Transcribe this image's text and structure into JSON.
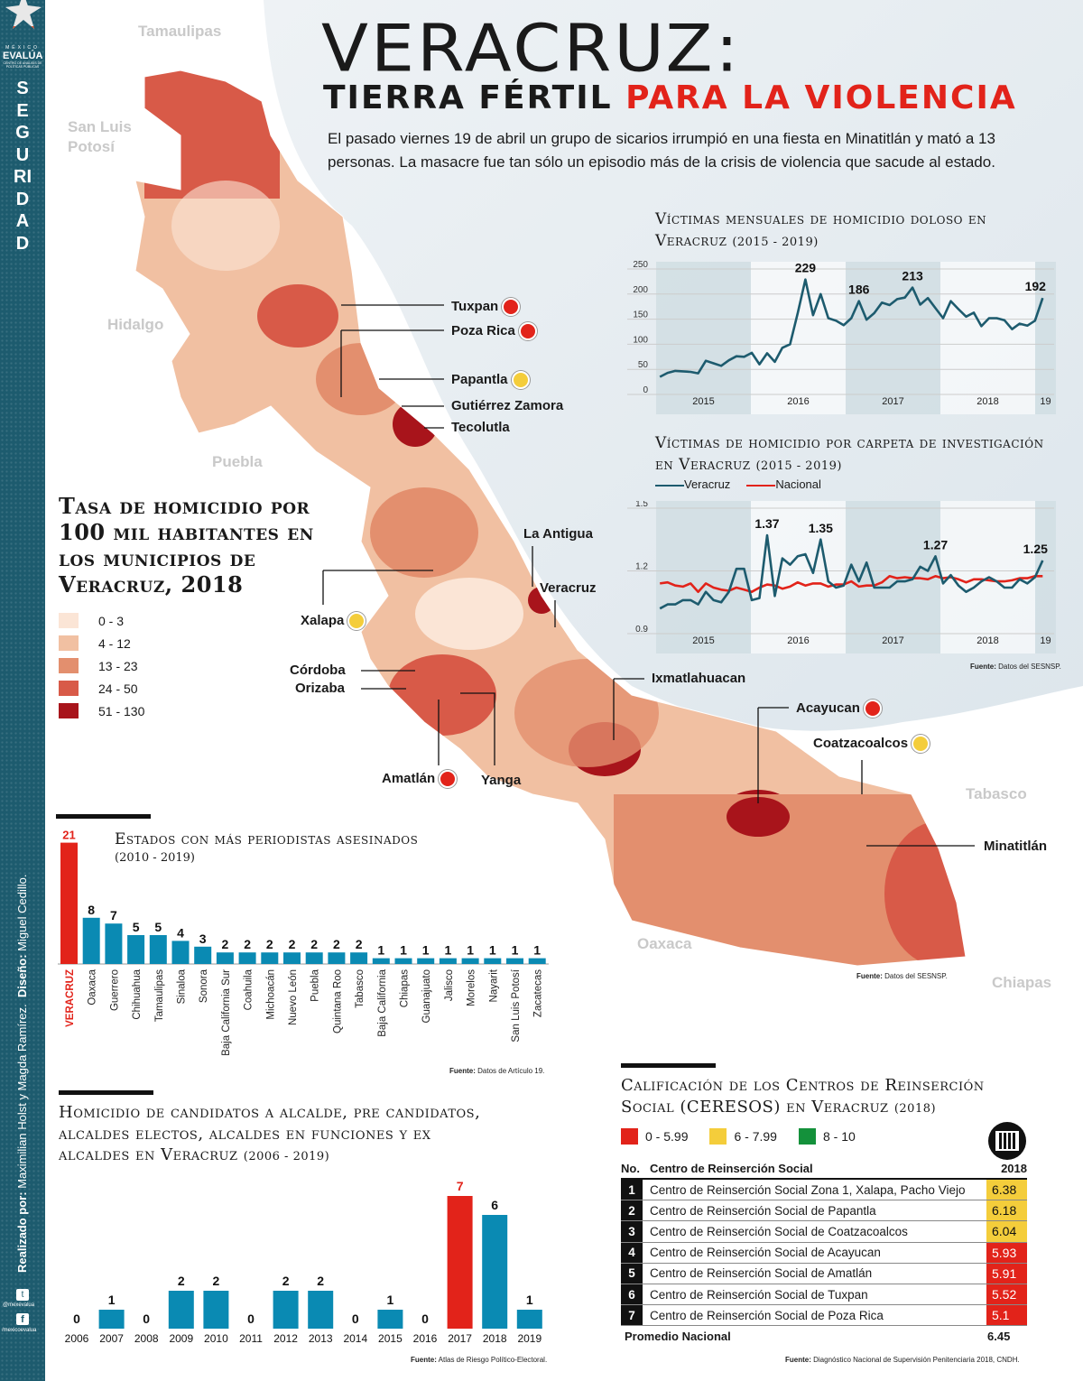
{
  "sidebar": {
    "brand_top": "MÉXICO",
    "brand": "EVALÚA",
    "brand_sub": "CENTRO DE ANÁLISIS DE POLÍTICAS PÚBLICAS",
    "section": "SEGURIDAD",
    "credits_label1": "Realizado por:",
    "credits1": "Maximilian Holst y Magda Ramírez.",
    "credits_label2": "Diseño:",
    "credits2": "Miguel Cedillo.",
    "twitter": "@mexevalua",
    "facebook": "/mexicoevalua",
    "colors": {
      "bg": "#1d5b6e"
    }
  },
  "header": {
    "title": "VERACRUZ:",
    "subtitle_a": "TIERRA FÉRTIL",
    "subtitle_b": "PARA LA VIOLENCIA",
    "intro": "El pasado viernes 19 de abril un grupo de sicarios irrumpió en una fiesta en Minatitlán y mató a 13 personas. La masacre fue tan sólo un episodio más de la crisis de violencia que sacude al estado."
  },
  "map": {
    "title": "Tasa de homicidio por 100 mil habitantes en los municipios de Veracruz, 2018",
    "legend": [
      {
        "label": "0 - 3",
        "color": "#fbe5d6"
      },
      {
        "label": "4 - 12",
        "color": "#f1c0a2"
      },
      {
        "label": "13 - 23",
        "color": "#e38f6e"
      },
      {
        "label": "24 - 50",
        "color": "#d85a48"
      },
      {
        "label": "51 - 130",
        "color": "#a8141b"
      }
    ],
    "states": [
      "Tamaulipas",
      "San Luis Potosí",
      "Hidalgo",
      "Puebla",
      "Tabasco",
      "Oaxaca",
      "Chiapas"
    ],
    "places": [
      "Tuxpan",
      "Poza Rica",
      "Papantla",
      "Gutiérrez Zamora",
      "Tecolutla",
      "La Antigua",
      "Veracruz",
      "Xalapa",
      "Córdoba",
      "Orizaba",
      "Amatlán",
      "Yanga",
      "Ixmatlahuacan",
      "Acayucan",
      "Coatzacoalcos",
      "Minatitlán"
    ],
    "source_label": "Fuente:",
    "source": "Datos del SESNSP."
  },
  "chart_data": [
    {
      "type": "line",
      "title": "Víctimas mensuales de homicidio doloso en Veracruz",
      "period": "(2015 - 2019)",
      "ylim": [
        0,
        250
      ],
      "yticks": [
        "0",
        "50",
        "100",
        "150",
        "200",
        "250"
      ],
      "xticks": [
        "2015",
        "2016",
        "2017",
        "2018",
        "19"
      ],
      "series": [
        {
          "name": "Veracruz",
          "color": "#1d5b6e",
          "values": [
            35,
            43,
            47,
            46,
            45,
            42,
            67,
            62,
            57,
            68,
            76,
            75,
            83,
            60,
            82,
            65,
            93,
            100,
            162,
            229,
            158,
            200,
            152,
            147,
            138,
            152,
            186,
            149,
            162,
            183,
            178,
            190,
            193,
            213,
            179,
            192,
            172,
            152,
            186,
            170,
            155,
            163,
            136,
            152,
            152,
            148,
            130,
            141,
            137,
            147,
            192
          ]
        }
      ],
      "annotations": [
        {
          "index": 19,
          "label": "229"
        },
        {
          "index": 26,
          "label": "186"
        },
        {
          "index": 33,
          "label": "213"
        },
        {
          "index": 50,
          "label": "192"
        }
      ]
    },
    {
      "type": "line",
      "title": "Víctimas de homicidio por carpeta de investigación en Veracruz",
      "period": "(2015 - 2019)",
      "ylim": [
        0.9,
        1.5
      ],
      "yticks": [
        "0.9",
        "1.2",
        "1.5"
      ],
      "xticks": [
        "2015",
        "2016",
        "2017",
        "2018",
        "19"
      ],
      "series": [
        {
          "name": "Veracruz",
          "color": "#1d5b6e",
          "values": [
            1.02,
            1.04,
            1.04,
            1.06,
            1.06,
            1.04,
            1.1,
            1.06,
            1.05,
            1.1,
            1.21,
            1.21,
            1.06,
            1.07,
            1.37,
            1.08,
            1.26,
            1.23,
            1.27,
            1.28,
            1.19,
            1.35,
            1.15,
            1.12,
            1.13,
            1.23,
            1.15,
            1.24,
            1.12,
            1.12,
            1.12,
            1.15,
            1.15,
            1.16,
            1.22,
            1.2,
            1.27,
            1.14,
            1.18,
            1.13,
            1.1,
            1.12,
            1.15,
            1.17,
            1.15,
            1.12,
            1.12,
            1.16,
            1.14,
            1.17,
            1.25
          ]
        },
        {
          "name": "Nacional",
          "color": "#e2231a",
          "values": [
            1.14,
            1.145,
            1.13,
            1.125,
            1.14,
            1.1,
            1.14,
            1.12,
            1.11,
            1.105,
            1.12,
            1.11,
            1.1,
            1.12,
            1.135,
            1.13,
            1.115,
            1.125,
            1.145,
            1.13,
            1.14,
            1.14,
            1.125,
            1.135,
            1.135,
            1.15,
            1.125,
            1.13,
            1.13,
            1.145,
            1.175,
            1.165,
            1.17,
            1.165,
            1.165,
            1.16,
            1.175,
            1.165,
            1.17,
            1.16,
            1.145,
            1.16,
            1.16,
            1.155,
            1.15,
            1.15,
            1.155,
            1.165,
            1.165,
            1.175,
            1.175
          ]
        }
      ],
      "annotations": [
        {
          "index": 14,
          "label": "1.37"
        },
        {
          "index": 21,
          "label": "1.35"
        },
        {
          "index": 36,
          "label": "1.27"
        },
        {
          "index": 50,
          "label": "1.25"
        }
      ],
      "source_label": "Fuente:",
      "source": "Datos del SESNSP."
    },
    {
      "type": "bar",
      "title": "Estados con más periodistas asesinados",
      "period": "(2010 - 2019)",
      "categories": [
        "VERACRUZ",
        "Oaxaca",
        "Guerrero",
        "Chihuahua",
        "Tamaulipas",
        "Sinaloa",
        "Sonora",
        "Baja California Sur",
        "Coahuila",
        "Michoacán",
        "Nuevo León",
        "Puebla",
        "Quintana Roo",
        "Tabasco",
        "Baja California",
        "Chiapas",
        "Guanajuato",
        "Jalisco",
        "Morelos",
        "Nayarit",
        "San Luis Potosí",
        "Zacatecas"
      ],
      "values": [
        21,
        8,
        7,
        5,
        5,
        4,
        3,
        2,
        2,
        2,
        2,
        2,
        2,
        2,
        1,
        1,
        1,
        1,
        1,
        1,
        1,
        1
      ],
      "highlight": 0,
      "source_label": "Fuente:",
      "source": "Datos de Artículo 19."
    },
    {
      "type": "bar",
      "title": "Homicidio de candidatos a alcalde, pre candidatos, alcaldes electos, alcaldes en funciones y ex alcaldes en Veracruz",
      "period": "(2006 - 2019)",
      "categories": [
        "2006",
        "2007",
        "2008",
        "2009",
        "2010",
        "2011",
        "2012",
        "2013",
        "2014",
        "2015",
        "2016",
        "2017",
        "2018",
        "2019"
      ],
      "values": [
        0,
        1,
        0,
        2,
        2,
        0,
        2,
        2,
        0,
        1,
        0,
        7,
        6,
        1
      ],
      "highlight": 11,
      "source_label": "Fuente:",
      "source": "Atlas de Riesgo Político-Electoral."
    },
    {
      "type": "table",
      "title": "Calificación de los Centros de Reinserción Social (CERESOS) en Veracruz",
      "period": "(2018)",
      "legend": [
        {
          "label": "0 - 5.99",
          "color": "#e2231a"
        },
        {
          "label": "6 - 7.99",
          "color": "#f4cd3b"
        },
        {
          "label": "8 - 10",
          "color": "#14913b"
        }
      ],
      "headers": [
        "No.",
        "Centro de Reinserción Social",
        "2018"
      ],
      "rows": [
        [
          "1",
          "Centro de Reinserción Social Zona 1, Xalapa, Pacho Viejo",
          "6.38"
        ],
        [
          "2",
          "Centro de Reinserción Social de Papantla",
          "6.18"
        ],
        [
          "3",
          "Centro de Reinserción Social de Coatzacoalcos",
          "6.04"
        ],
        [
          "4",
          "Centro de Reinserción Social de Acayucan",
          "5.93"
        ],
        [
          "5",
          "Centro de Reinserción Social de Amatlán",
          "5.91"
        ],
        [
          "6",
          "Centro de Reinserción Social de Tuxpan",
          "5.52"
        ],
        [
          "7",
          "Centro de Reinserción Social de Poza Rica",
          "5.1"
        ]
      ],
      "footer": [
        "Promedio Nacional",
        "6.45"
      ],
      "source_label": "Fuente:",
      "source": "Diagnóstico Nacional de Supervisión Penitenciaria 2018, CNDH."
    }
  ]
}
